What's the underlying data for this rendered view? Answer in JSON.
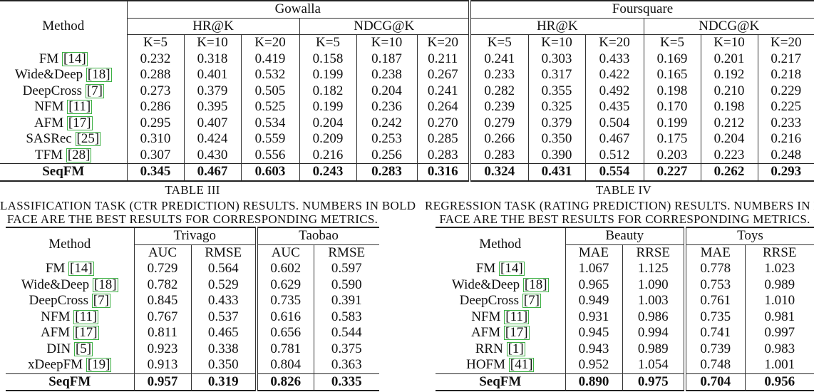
{
  "table1": {
    "method_header": "Method",
    "datasets": [
      "Gowalla",
      "Foursquare"
    ],
    "metric_groups": [
      "HR@K",
      "NDCG@K",
      "HR@K",
      "NDCG@K"
    ],
    "k_labels": [
      "K=5",
      "K=10",
      "K=20",
      "K=5",
      "K=10",
      "K=20",
      "K=5",
      "K=10",
      "K=20",
      "K=5",
      "K=10",
      "K=20"
    ],
    "rows": [
      {
        "name": "FM",
        "ref": "14",
        "values": [
          "0.232",
          "0.318",
          "0.419",
          "0.158",
          "0.187",
          "0.211",
          "0.241",
          "0.303",
          "0.433",
          "0.169",
          "0.201",
          "0.217"
        ]
      },
      {
        "name": "Wide&Deep",
        "ref": "18",
        "values": [
          "0.288",
          "0.401",
          "0.532",
          "0.199",
          "0.238",
          "0.267",
          "0.233",
          "0.317",
          "0.422",
          "0.165",
          "0.192",
          "0.218"
        ]
      },
      {
        "name": "DeepCross",
        "ref": "7",
        "values": [
          "0.273",
          "0.379",
          "0.505",
          "0.182",
          "0.204",
          "0.241",
          "0.282",
          "0.355",
          "0.492",
          "0.198",
          "0.210",
          "0.229"
        ]
      },
      {
        "name": "NFM",
        "ref": "11",
        "values": [
          "0.286",
          "0.395",
          "0.525",
          "0.199",
          "0.236",
          "0.264",
          "0.239",
          "0.325",
          "0.435",
          "0.170",
          "0.198",
          "0.225"
        ]
      },
      {
        "name": "AFM",
        "ref": "17",
        "values": [
          "0.295",
          "0.407",
          "0.534",
          "0.204",
          "0.242",
          "0.270",
          "0.279",
          "0.379",
          "0.504",
          "0.199",
          "0.212",
          "0.233"
        ]
      },
      {
        "name": "SASRec",
        "ref": "25",
        "values": [
          "0.310",
          "0.424",
          "0.559",
          "0.209",
          "0.253",
          "0.285",
          "0.266",
          "0.350",
          "0.467",
          "0.175",
          "0.204",
          "0.216"
        ]
      },
      {
        "name": "TFM",
        "ref": "28",
        "values": [
          "0.307",
          "0.430",
          "0.556",
          "0.216",
          "0.256",
          "0.283",
          "0.283",
          "0.390",
          "0.512",
          "0.203",
          "0.223",
          "0.248"
        ]
      },
      {
        "name": "SeqFM",
        "ref": "",
        "values": [
          "0.345",
          "0.467",
          "0.603",
          "0.243",
          "0.283",
          "0.316",
          "0.324",
          "0.431",
          "0.554",
          "0.227",
          "0.262",
          "0.293"
        ]
      }
    ]
  },
  "caption3": {
    "table_no": "TABLE III",
    "line1": "LASSIFICATION TASK (CTR PREDICTION) RESULTS. NUMBERS IN BOLD",
    "line2": "FACE ARE THE BEST RESULTS FOR CORRESPONDING METRICS."
  },
  "caption4": {
    "table_no": "TABLE IV",
    "line1": "REGRESSION TASK (RATING PREDICTION) RESULTS. NUMBERS IN BOL",
    "line2": "FACE ARE THE BEST RESULTS FOR CORRESPONDING METRICS."
  },
  "table3": {
    "method_header": "Method",
    "datasets": [
      "Trivago",
      "Taobao"
    ],
    "metrics": [
      "AUC",
      "RMSE",
      "AUC",
      "RMSE"
    ],
    "rows": [
      {
        "name": "FM",
        "ref": "14",
        "values": [
          "0.729",
          "0.564",
          "0.602",
          "0.597"
        ]
      },
      {
        "name": "Wide&Deep",
        "ref": "18",
        "values": [
          "0.782",
          "0.529",
          "0.629",
          "0.590"
        ]
      },
      {
        "name": "DeepCross",
        "ref": "7",
        "values": [
          "0.845",
          "0.433",
          "0.735",
          "0.391"
        ]
      },
      {
        "name": "NFM",
        "ref": "11",
        "values": [
          "0.767",
          "0.537",
          "0.616",
          "0.583"
        ]
      },
      {
        "name": "AFM",
        "ref": "17",
        "values": [
          "0.811",
          "0.465",
          "0.656",
          "0.544"
        ]
      },
      {
        "name": "DIN",
        "ref": "5",
        "values": [
          "0.923",
          "0.338",
          "0.781",
          "0.375"
        ]
      },
      {
        "name": "xDeepFM",
        "ref": "19",
        "values": [
          "0.913",
          "0.350",
          "0.804",
          "0.363"
        ]
      },
      {
        "name": "SeqFM",
        "ref": "",
        "values": [
          "0.957",
          "0.319",
          "0.826",
          "0.335"
        ]
      }
    ]
  },
  "table4": {
    "method_header": "Method",
    "datasets": [
      "Beauty",
      "Toys"
    ],
    "metrics": [
      "MAE",
      "RRSE",
      "MAE",
      "RRSE"
    ],
    "rows": [
      {
        "name": "FM",
        "ref": "14",
        "values": [
          "1.067",
          "1.125",
          "0.778",
          "1.023"
        ]
      },
      {
        "name": "Wide&Deep",
        "ref": "18",
        "values": [
          "0.965",
          "1.090",
          "0.753",
          "0.989"
        ]
      },
      {
        "name": "DeepCross",
        "ref": "7",
        "values": [
          "0.949",
          "1.003",
          "0.761",
          "1.010"
        ]
      },
      {
        "name": "NFM",
        "ref": "11",
        "values": [
          "0.931",
          "0.986",
          "0.735",
          "0.981"
        ]
      },
      {
        "name": "AFM",
        "ref": "17",
        "values": [
          "0.945",
          "0.994",
          "0.741",
          "0.997"
        ]
      },
      {
        "name": "RRN",
        "ref": "1",
        "values": [
          "0.943",
          "0.989",
          "0.739",
          "0.983"
        ]
      },
      {
        "name": "HOFM",
        "ref": "41",
        "values": [
          "0.952",
          "1.054",
          "0.748",
          "1.001"
        ]
      },
      {
        "name": "SeqFM",
        "ref": "",
        "values": [
          "0.890",
          "0.975",
          "0.704",
          "0.956"
        ]
      }
    ]
  }
}
